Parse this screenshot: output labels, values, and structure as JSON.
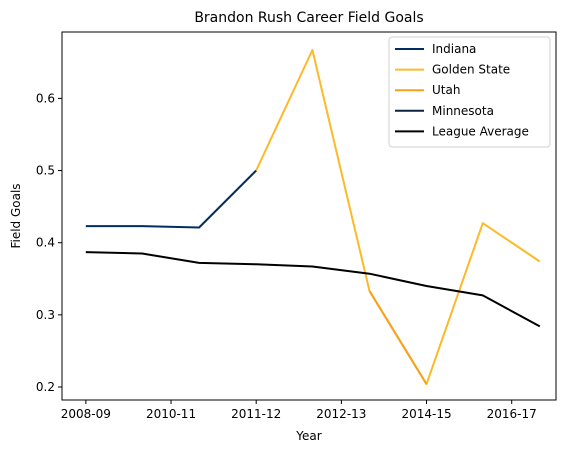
{
  "chart_data": {
    "type": "line",
    "title": "Brandon Rush Career Field Goals",
    "xlabel": "Year",
    "ylabel": "Field Goals",
    "x_ticks": [
      "2008-09",
      "2010-11",
      "2011-12",
      "2012-13",
      "2014-15",
      "2016-17"
    ],
    "y_ticks": [
      "0.2",
      "0.3",
      "0.4",
      "0.5",
      "0.6"
    ],
    "xlim": [
      -0.28,
      5.52
    ],
    "ylim": [
      0.182,
      0.692
    ],
    "grid": false,
    "legend_position": "top-right",
    "series": [
      {
        "name": "Indiana",
        "color": "#002D62",
        "points": [
          [
            0,
            0.423
          ],
          [
            0.66,
            0.423
          ],
          [
            1.33,
            0.421
          ],
          [
            2.0,
            0.5
          ]
        ]
      },
      {
        "name": "Golden State",
        "color": "#FDB927",
        "points": [
          [
            2.0,
            0.5
          ],
          [
            2.66,
            0.667
          ],
          [
            3.33,
            0.333
          ],
          [
            4.0,
            0.204
          ],
          [
            4.66,
            0.427
          ],
          [
            5.33,
            0.374
          ]
        ]
      },
      {
        "name": "Utah",
        "color": "#F9A01B",
        "points": [
          [
            3.33,
            0.333
          ],
          [
            4.0,
            0.204
          ]
        ]
      },
      {
        "name": "Minnesota",
        "color": "#0C2340",
        "points": []
      },
      {
        "name": "League Average",
        "color": "#000000",
        "points": [
          [
            0,
            0.387
          ],
          [
            0.66,
            0.385
          ],
          [
            1.33,
            0.372
          ],
          [
            2.0,
            0.37
          ],
          [
            2.66,
            0.367
          ],
          [
            3.33,
            0.357
          ],
          [
            4.0,
            0.34
          ],
          [
            4.66,
            0.327
          ],
          [
            5.33,
            0.284
          ]
        ]
      }
    ]
  }
}
